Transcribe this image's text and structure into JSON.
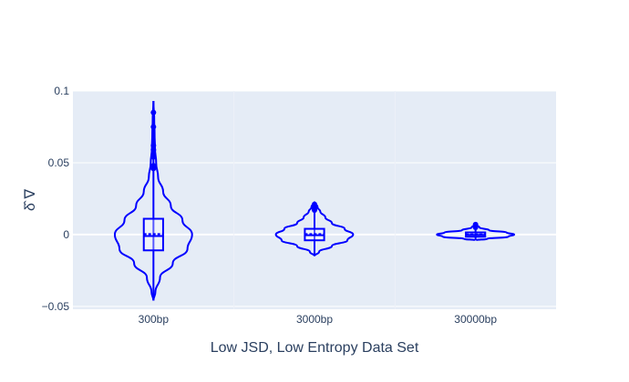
{
  "chart_data": {
    "type": "violin",
    "xlabel": "Low JSD, Low Entropy Data Set",
    "ylabel": "δ̂ ∇",
    "ylim": [
      -0.052,
      0.1
    ],
    "yticks": [
      {
        "value": 0.1,
        "label": "0.1"
      },
      {
        "value": 0.05,
        "label": "0.05"
      },
      {
        "value": 0,
        "label": "0"
      },
      {
        "value": -0.05,
        "label": "−0.05"
      }
    ],
    "grid": true,
    "colors": {
      "series": "#0000ff",
      "plot_background": "#e5ecf6",
      "grid": "#ffffff",
      "text": "#2a3f5f"
    },
    "categories": [
      "300bp",
      "3000bp",
      "30000bp"
    ],
    "series": [
      {
        "category": "300bp",
        "whisker_low": -0.046,
        "q1": -0.011,
        "median": -0.001,
        "mean": 0.0003,
        "q3": 0.011,
        "whisker_high": 0.093,
        "outliers": [
          0.085,
          0.075,
          0.062,
          0.059,
          0.056,
          0.054,
          0.048,
          0.046
        ],
        "density": [
          [
            -0.046,
            0.0
          ],
          [
            -0.04,
            0.05
          ],
          [
            -0.03,
            0.17
          ],
          [
            -0.02,
            0.5
          ],
          [
            -0.01,
            0.88
          ],
          [
            0.0,
            1.0
          ],
          [
            0.01,
            0.75
          ],
          [
            0.02,
            0.45
          ],
          [
            0.03,
            0.25
          ],
          [
            0.04,
            0.12
          ],
          [
            0.05,
            0.07
          ],
          [
            0.06,
            0.04
          ],
          [
            0.07,
            0.03
          ],
          [
            0.08,
            0.02
          ],
          [
            0.093,
            0.0
          ]
        ]
      },
      {
        "category": "3000bp",
        "whisker_low": -0.015,
        "q1": -0.004,
        "median": -0.0005,
        "mean": 0.0003,
        "q3": 0.004,
        "whisker_high": 0.023,
        "outliers": [
          0.021,
          0.019,
          0.018,
          0.017
        ],
        "density": [
          [
            -0.015,
            0.0
          ],
          [
            -0.012,
            0.12
          ],
          [
            -0.008,
            0.45
          ],
          [
            -0.004,
            0.85
          ],
          [
            0.0,
            1.0
          ],
          [
            0.004,
            0.78
          ],
          [
            0.008,
            0.45
          ],
          [
            0.012,
            0.28
          ],
          [
            0.016,
            0.15
          ],
          [
            0.019,
            0.08
          ],
          [
            0.023,
            0.0
          ]
        ]
      },
      {
        "category": "30000bp",
        "whisker_low": -0.004,
        "q1": -0.0015,
        "median": -0.0002,
        "mean": 0.0001,
        "q3": 0.0015,
        "whisker_high": 0.007,
        "outliers": [
          0.007,
          0.006,
          0.005
        ],
        "density": [
          [
            -0.004,
            0.0
          ],
          [
            -0.003,
            0.3
          ],
          [
            -0.0015,
            0.85
          ],
          [
            0.0,
            1.0
          ],
          [
            0.0015,
            0.8
          ],
          [
            0.003,
            0.35
          ],
          [
            0.005,
            0.1
          ],
          [
            0.007,
            0.0
          ]
        ]
      }
    ]
  }
}
